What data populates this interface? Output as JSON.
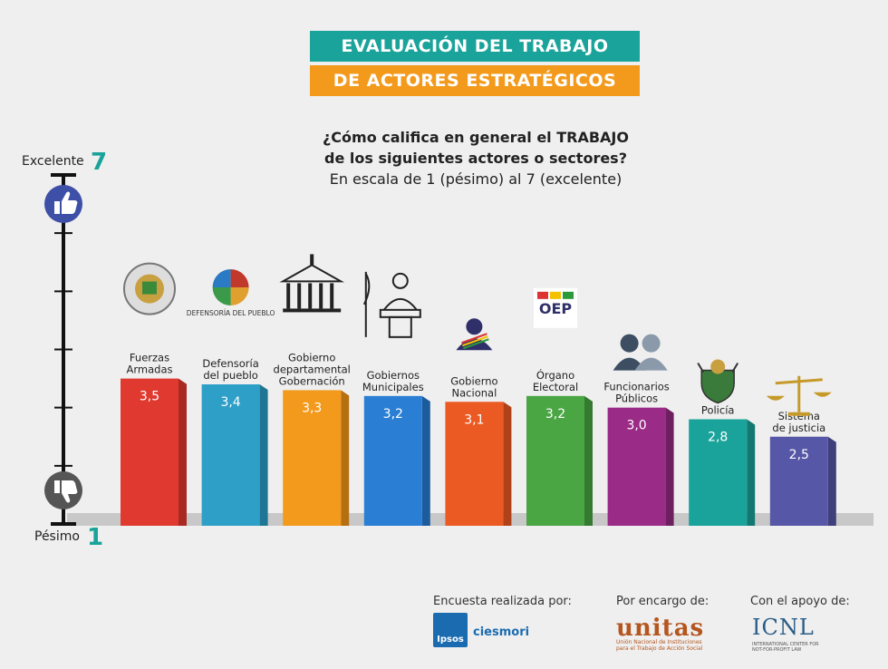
{
  "header": {
    "line1": "EVALUACIÓN DEL TRABAJO",
    "line2": "DE ACTORES ESTRATÉGICOS"
  },
  "question": {
    "line1": "¿Cómo califica en general el TRABAJO",
    "line2": "de los siguientes actores o sectores?",
    "line3": "En escala de 1 (pésimo) al 7 (excelente)"
  },
  "scale": {
    "top_label": "Excelente",
    "top_value": "7",
    "bottom_label": "Pésimo",
    "bottom_value": "1"
  },
  "chart_data": {
    "type": "bar",
    "title": "¿Cómo califica en general el TRABAJO de los siguientes actores o sectores?",
    "ylim": [
      1,
      7
    ],
    "categories": [
      "Fuerzas Armadas",
      "Defensoría del pueblo",
      "Gobierno departamental Gobernación",
      "Gobiernos Municipales",
      "Gobierno Nacional",
      "Órgano Electoral",
      "Funcionarios Públicos",
      "Policía",
      "Sistema de justicia"
    ],
    "label_lines": [
      [
        "Fuerzas",
        "Armadas"
      ],
      [
        "Defensoría",
        "del pueblo"
      ],
      [
        "Gobierno",
        "departamental",
        "Gobernación"
      ],
      [
        "Gobiernos",
        "Municipales"
      ],
      [
        "Gobierno",
        "Nacional"
      ],
      [
        "Órgano",
        "Electoral"
      ],
      [
        "Funcionarios",
        "Públicos"
      ],
      [
        "Policía"
      ],
      [
        "Sistema",
        "de justicia"
      ]
    ],
    "values": [
      3.5,
      3.4,
      3.3,
      3.2,
      3.1,
      3.2,
      3.0,
      2.8,
      2.5
    ],
    "value_labels": [
      "3,5",
      "3,4",
      "3,3",
      "3,2",
      "3,1",
      "3,2",
      "3,0",
      "2,8",
      "2,5"
    ],
    "colors": [
      "#e03a30",
      "#2e9fc7",
      "#f39a1c",
      "#2a7fd4",
      "#ec5a24",
      "#4aa543",
      "#9a2b86",
      "#1aa39a",
      "#5757a8"
    ],
    "shadow_colors": [
      "#a82a22",
      "#1f7694",
      "#b56f10",
      "#1d5c9c",
      "#b0421a",
      "#347a30",
      "#6e1f60",
      "#137872",
      "#3f3f7c"
    ],
    "icons": [
      "coat-of-arms-icon",
      "defensoria-logo-icon",
      "government-building-icon",
      "podium-speaker-icon",
      "president-sash-icon",
      "oep-logo-icon",
      "people-icon",
      "police-badge-icon",
      "justice-scale-icon"
    ],
    "logo_texts": {
      "defensoria": "DEFENSORÍA DEL PUEBLO",
      "oep": "OEP"
    }
  },
  "credits": {
    "survey_by": "Encuesta realizada por:",
    "commissioned_by": "Por encargo de:",
    "supported_by": "Con el apoyo de:",
    "ipsos": "Ipsos",
    "ciesmori": "ciesmori",
    "unitas": "unitas",
    "unitas_sub": "Unión Nacional de Instituciones para el Trabajo de Acción Social",
    "icnl": "ICNL",
    "icnl_sub": "INTERNATIONAL CENTER FOR NOT-FOR-PROFIT LAW"
  }
}
